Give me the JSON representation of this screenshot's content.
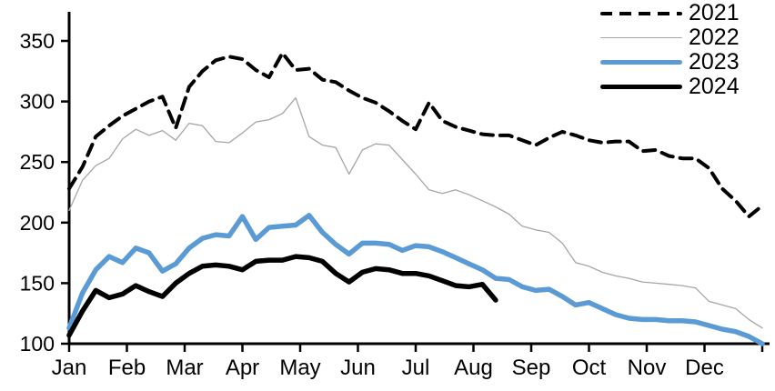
{
  "chart_data": {
    "type": "line",
    "title": "",
    "x_axis": {
      "tick_labels": [
        "Jan",
        "Feb",
        "Mar",
        "Apr",
        "May",
        "Jun",
        "Jul",
        "Aug",
        "Sep",
        "Oct",
        "Nov",
        "Dec"
      ],
      "unit": "week-of-year",
      "weeks": 52
    },
    "y_axis": {
      "min": 100,
      "max": 350,
      "step": 50,
      "ticks": [
        100,
        150,
        200,
        250,
        300,
        350
      ]
    },
    "legend": {
      "position": "top-right"
    },
    "series": [
      {
        "name": "2021",
        "color": "#000000",
        "style": "dashed",
        "width": 4,
        "start_week": 0,
        "values": [
          228,
          246,
          271,
          280,
          288,
          294,
          300,
          304,
          278,
          312,
          325,
          334,
          337,
          335,
          326,
          320,
          340,
          326,
          327,
          318,
          316,
          309,
          303,
          299,
          292,
          284,
          277,
          299,
          284,
          279,
          276,
          273,
          272,
          272,
          268,
          264,
          270,
          275,
          272,
          268,
          266,
          267,
          267,
          259,
          260,
          255,
          253,
          253,
          245,
          228,
          218,
          205,
          214
        ]
      },
      {
        "name": "2022",
        "color": "#a6a6a6",
        "style": "solid",
        "width": 1.3,
        "start_week": 0,
        "values": [
          210,
          235,
          247,
          253,
          269,
          277,
          272,
          276,
          268,
          282,
          280,
          267,
          266,
          274,
          283,
          285,
          290,
          303,
          271,
          264,
          262,
          240,
          260,
          265,
          264,
          252,
          240,
          227,
          224,
          227,
          223,
          218,
          213,
          207,
          197,
          194,
          192,
          183,
          167,
          164,
          159,
          156,
          154,
          151,
          150,
          149,
          148,
          146,
          135,
          132,
          129,
          120,
          113
        ]
      },
      {
        "name": "2023",
        "color": "#5b9bd5",
        "style": "solid",
        "width": 5.5,
        "start_week": 0,
        "values": [
          113,
          142,
          161,
          172,
          167,
          179,
          175,
          160,
          166,
          179,
          187,
          190,
          189,
          205,
          186,
          196,
          197,
          198,
          206,
          192,
          182,
          174,
          183,
          183,
          182,
          177,
          181,
          180,
          176,
          171,
          166,
          161,
          154,
          153,
          147,
          144,
          145,
          139,
          132,
          134,
          129,
          124,
          121,
          120,
          120,
          119,
          119,
          118,
          115,
          112,
          110,
          106,
          100
        ]
      },
      {
        "name": "2024",
        "color": "#000000",
        "style": "solid",
        "width": 5.5,
        "start_week": 0,
        "values": [
          107,
          127,
          144,
          138,
          141,
          148,
          143,
          139,
          150,
          158,
          164,
          165,
          164,
          161,
          168,
          169,
          169,
          172,
          171,
          168,
          158,
          151,
          159,
          162,
          161,
          158,
          158,
          156,
          152,
          148,
          147,
          149,
          136
        ]
      }
    ]
  }
}
